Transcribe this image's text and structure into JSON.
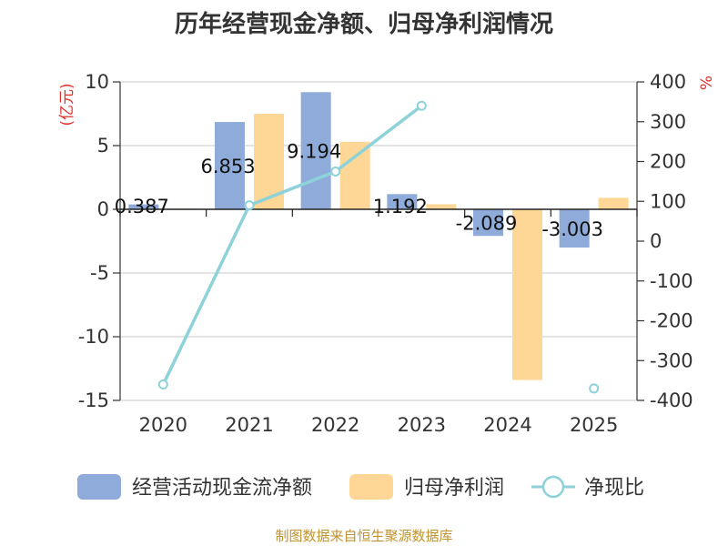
{
  "chart_data": {
    "type": "bar",
    "title": "历年经营现金净额、归母净利润情况",
    "categories": [
      "2020",
      "2021",
      "2022",
      "2023",
      "2024",
      "2025"
    ],
    "left_axis": {
      "unit": "(亿元)",
      "ylim": [
        -15,
        10
      ],
      "ticks": [
        10,
        5,
        0,
        -5,
        -10,
        -15
      ]
    },
    "right_axis": {
      "unit": "%",
      "ylim": [
        -400,
        400
      ],
      "ticks": [
        400,
        300,
        200,
        100,
        0,
        -100,
        -200,
        -300,
        -400
      ]
    },
    "series": [
      {
        "name": "经营活动现金流净额",
        "type": "bar",
        "axis": "left",
        "color": "#8eabda",
        "values": [
          0.387,
          6.853,
          9.194,
          1.192,
          -2.089,
          -3.003
        ],
        "labels": [
          "0.387",
          "6.853",
          "9.194",
          "1.192",
          "-2.089",
          "-3.003"
        ]
      },
      {
        "name": "归母净利润",
        "type": "bar",
        "axis": "left",
        "color": "#fed695",
        "values": [
          0.05,
          7.5,
          5.3,
          0.4,
          -13.4,
          0.9
        ]
      },
      {
        "name": "净现比",
        "type": "line",
        "axis": "right",
        "color": "#8dd1d9",
        "values": [
          -360,
          90,
          175,
          340,
          null,
          -370
        ],
        "connected": [
          true,
          true,
          true,
          true,
          false,
          false
        ]
      }
    ],
    "grid": true,
    "legend_position": "bottom"
  },
  "source_text": "制图数据来自恒生聚源数据库"
}
